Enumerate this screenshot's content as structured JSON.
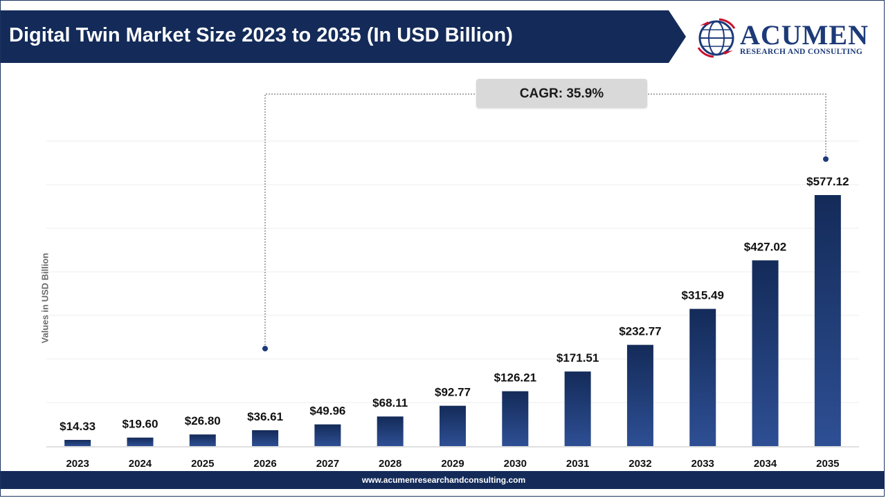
{
  "header": {
    "title": "Digital Twin Market Size 2023 to 2035 (In USD Billion)"
  },
  "logo": {
    "name": "ACUMEN",
    "tagline": "RESEARCH AND CONSULTING",
    "icon": "globe-icon"
  },
  "annotation": {
    "cagr_label": "CAGR: 35.9%"
  },
  "footer": {
    "url": "www.acumenresearchandconsulting.com"
  },
  "colors": {
    "banner": "#142b59",
    "bar_top": "#142b59",
    "bar_bottom": "#2e4f94",
    "logo_red": "#c8102e"
  },
  "chart_data": {
    "type": "bar",
    "title": "Digital Twin Market Size 2023 to 2035 (In USD Billion)",
    "ylabel": "Values in USD Billion",
    "xlabel": "",
    "categories": [
      "2023",
      "2024",
      "2025",
      "2026",
      "2027",
      "2028",
      "2029",
      "2030",
      "2031",
      "2032",
      "2033",
      "2034",
      "2035"
    ],
    "values": [
      14.33,
      19.6,
      26.8,
      36.61,
      49.96,
      68.11,
      92.77,
      126.21,
      171.51,
      232.77,
      315.49,
      427.02,
      577.12
    ],
    "value_labels": [
      "$14.33",
      "$19.60",
      "$26.80",
      "$36.61",
      "$49.96",
      "$68.11",
      "$92.77",
      "$126.21",
      "$171.51",
      "$232.77",
      "$315.49",
      "$427.02",
      "$577.12"
    ],
    "ylim": [
      0,
      577.12
    ],
    "grid": true,
    "legend": "none"
  }
}
